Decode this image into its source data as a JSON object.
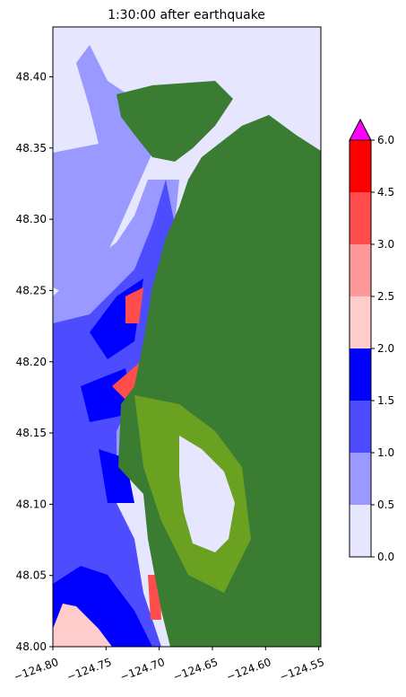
{
  "chart_data": {
    "type": "map",
    "title": "1:30:00 after earthquake",
    "xlim": [
      -124.8,
      -124.548
    ],
    "ylim": [
      48.0,
      48.435
    ],
    "xticks": [
      {
        "value": -124.8,
        "label": "−124.80"
      },
      {
        "value": -124.75,
        "label": "−124.75"
      },
      {
        "value": -124.7,
        "label": "−124.70"
      },
      {
        "value": -124.65,
        "label": "−124.65"
      },
      {
        "value": -124.6,
        "label": "−124.60"
      },
      {
        "value": -124.55,
        "label": "−124.55"
      }
    ],
    "yticks": [
      {
        "value": 48.0,
        "label": "48.00"
      },
      {
        "value": 48.05,
        "label": "48.05"
      },
      {
        "value": 48.1,
        "label": "48.10"
      },
      {
        "value": 48.15,
        "label": "48.15"
      },
      {
        "value": 48.2,
        "label": "48.20"
      },
      {
        "value": 48.25,
        "label": "48.25"
      },
      {
        "value": 48.3,
        "label": "48.30"
      },
      {
        "value": 48.35,
        "label": "48.35"
      },
      {
        "value": 48.4,
        "label": "48.40"
      }
    ],
    "colorbar": {
      "levels": [
        {
          "value": 0,
          "label": "0.0"
        },
        {
          "value": 0.5,
          "label": "0.5"
        },
        {
          "value": 1,
          "label": "1.0"
        },
        {
          "value": 1.5,
          "label": "1.5"
        },
        {
          "value": 2,
          "label": "2.0"
        },
        {
          "value": 2.5,
          "label": "2.5"
        },
        {
          "value": 3,
          "label": "3.0"
        },
        {
          "value": 4.5,
          "label": "4.5"
        },
        {
          "value": 6,
          "label": "6.0"
        }
      ],
      "colors": [
        "#e6e6ff",
        "#9999ff",
        "#4d4dff",
        "#0000ff",
        "#ffcccc",
        "#ff9999",
        "#ff4d4d",
        "#ff0000"
      ],
      "extend_color": "#ff00ff"
    }
  }
}
